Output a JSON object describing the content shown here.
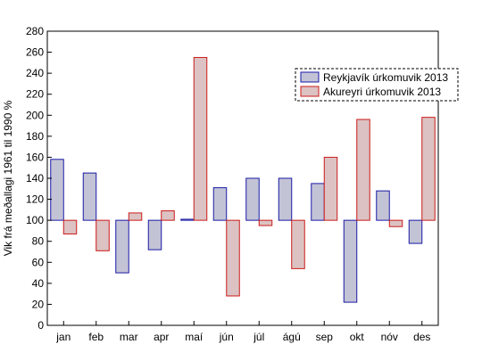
{
  "chart_data": {
    "type": "bar",
    "baseline": 100,
    "categories": [
      "jan",
      "feb",
      "mar",
      "apr",
      "maí",
      "jún",
      "júl",
      "ágú",
      "sep",
      "okt",
      "nóv",
      "des"
    ],
    "series": [
      {
        "name": "Reykjavík úrkomuvik 2013",
        "fill": "#c3c3d6",
        "stroke": "#1a1aa6",
        "values": [
          158,
          145,
          50,
          72,
          101,
          131,
          140,
          140,
          135,
          22,
          128,
          78
        ]
      },
      {
        "name": "Akureyri úrkomuvik 2013",
        "fill": "#dcc2c2",
        "stroke": "#cc1a1a",
        "values": [
          87,
          71,
          107,
          109,
          255,
          28,
          95,
          54,
          160,
          196,
          94,
          198
        ]
      }
    ],
    "ylabel": "Vik frá meðallagi 1961 til 1990 %",
    "ylim": [
      0,
      280
    ],
    "yticks": [
      0,
      20,
      40,
      60,
      80,
      100,
      120,
      140,
      160,
      180,
      200,
      220,
      240,
      260,
      280
    ],
    "legend_position": "top-right",
    "grid": false
  }
}
